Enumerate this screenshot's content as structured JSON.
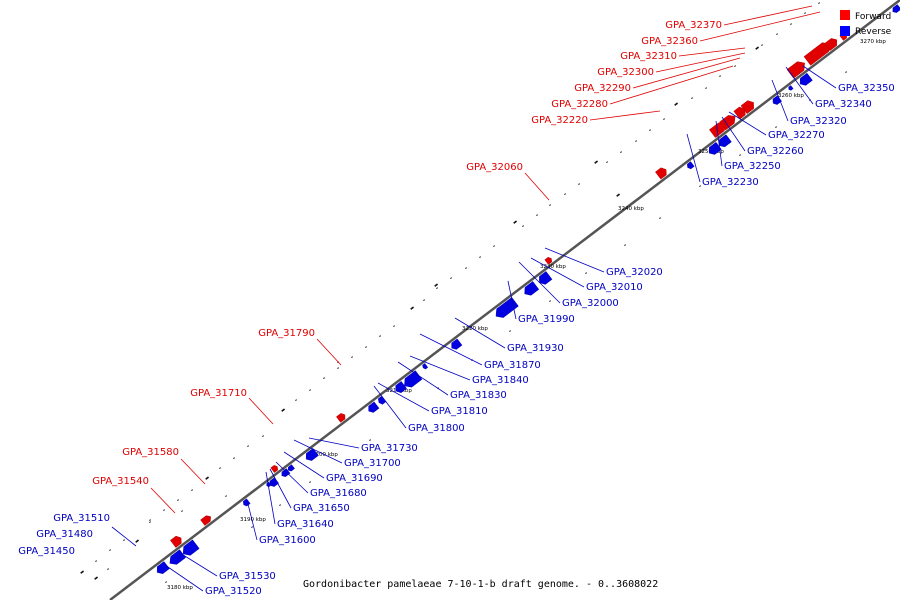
{
  "caption": "Gordonibacter pamelaeae 7-10-1-b draft genome. - 0..3608022",
  "legend": [
    {
      "label": "Forward",
      "color": "#ff0000"
    },
    {
      "label": "Reverse",
      "color": "#0000ff"
    }
  ],
  "colors": {
    "forward": "#e00000",
    "reverse": "#0000e0",
    "forward_text": "#e00000",
    "reverse_text": "#0000c0"
  },
  "kbp_ticks": [
    "3180 kbp",
    "3190 kbp",
    "3200 kbp",
    "3210 kbp",
    "3220 kbp",
    "3230 kbp",
    "3240 kbp",
    "3250 kbp",
    "3260 kbp",
    "3270 kbp"
  ],
  "forward_genes": [
    "GPA_32370",
    "GPA_32360",
    "GPA_32310",
    "GPA_32300",
    "GPA_32290",
    "GPA_32280",
    "GPA_32220",
    "GPA_32060",
    "GPA_31790",
    "GPA_31710",
    "GPA_31580",
    "GPA_31540"
  ],
  "reverse_genes": [
    "GPA_32350",
    "GPA_32340",
    "GPA_32320",
    "GPA_32270",
    "GPA_32260",
    "GPA_32250",
    "GPA_32230",
    "GPA_32020",
    "GPA_32010",
    "GPA_32000",
    "GPA_31990",
    "GPA_31930",
    "GPA_31870",
    "GPA_31840",
    "GPA_31830",
    "GPA_31810",
    "GPA_31800",
    "GPA_31730",
    "GPA_31700",
    "GPA_31690",
    "GPA_31680",
    "GPA_31650",
    "GPA_31640",
    "GPA_31600",
    "GPA_31530",
    "GPA_31520"
  ],
  "plain_genes": [
    "GPA_31510",
    "GPA_31480",
    "GPA_31450"
  ]
}
